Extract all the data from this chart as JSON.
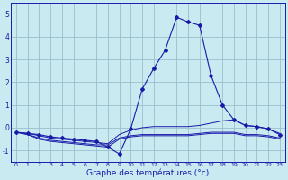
{
  "x": [
    0,
    1,
    2,
    3,
    4,
    5,
    6,
    7,
    8,
    9,
    10,
    11,
    12,
    13,
    14,
    15,
    16,
    17,
    18,
    19,
    20,
    21,
    22,
    23
  ],
  "line_main": [
    -0.2,
    -0.25,
    -0.3,
    -0.4,
    -0.45,
    -0.5,
    -0.55,
    -0.6,
    -0.85,
    -1.15,
    -0.05,
    1.7,
    2.6,
    3.4,
    4.85,
    4.65,
    4.5,
    2.3,
    1.0,
    0.35,
    0.1,
    0.05,
    -0.05,
    -0.3
  ],
  "line_flat1": [
    -0.2,
    -0.25,
    -0.35,
    -0.45,
    -0.5,
    -0.55,
    -0.6,
    -0.65,
    -0.7,
    -0.3,
    -0.1,
    0.0,
    0.05,
    0.05,
    0.05,
    0.05,
    0.1,
    0.2,
    0.3,
    0.35,
    0.1,
    0.05,
    -0.05,
    -0.25
  ],
  "line_flat2": [
    -0.2,
    -0.3,
    -0.45,
    -0.55,
    -0.6,
    -0.65,
    -0.7,
    -0.75,
    -0.75,
    -0.45,
    -0.35,
    -0.3,
    -0.3,
    -0.3,
    -0.3,
    -0.3,
    -0.25,
    -0.2,
    -0.2,
    -0.2,
    -0.3,
    -0.3,
    -0.35,
    -0.45
  ],
  "line_flat3": [
    -0.2,
    -0.3,
    -0.5,
    -0.6,
    -0.65,
    -0.7,
    -0.75,
    -0.8,
    -0.85,
    -0.5,
    -0.4,
    -0.35,
    -0.35,
    -0.35,
    -0.35,
    -0.35,
    -0.3,
    -0.25,
    -0.25,
    -0.25,
    -0.35,
    -0.35,
    -0.4,
    -0.5
  ],
  "ylim": [
    -1.5,
    5.5
  ],
  "yticks": [
    -1,
    0,
    1,
    2,
    3,
    4,
    5
  ],
  "xlabel": "Graphe des températures (°c)",
  "line_color": "#1a1aaa",
  "bg_color": "#c8eaf0",
  "grid_color": "#9bbfcc",
  "figsize": [
    3.2,
    2.0
  ],
  "dpi": 100
}
